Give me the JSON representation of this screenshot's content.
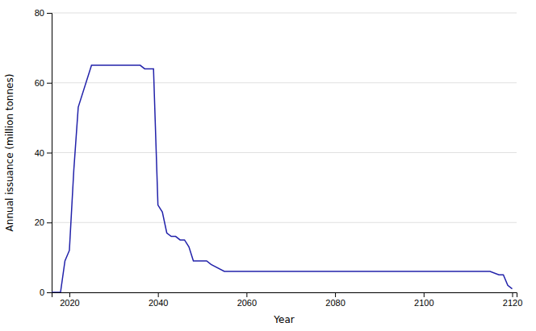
{
  "chart_data": {
    "type": "line",
    "x": [
      2016,
      2018,
      2019,
      2020,
      2021,
      2022,
      2025,
      2028,
      2030,
      2032,
      2033,
      2035,
      2036,
      2037,
      2038,
      2039,
      2040,
      2041,
      2042,
      2043,
      2044,
      2045,
      2046,
      2047,
      2048,
      2049,
      2050,
      2051,
      2052,
      2055,
      2058,
      2060,
      2065,
      2080,
      2110,
      2113,
      2115,
      2117,
      2118,
      2119,
      2120
    ],
    "values": [
      0,
      0,
      9,
      12,
      35,
      53,
      65,
      65,
      65,
      65,
      65,
      65,
      65,
      64,
      64,
      64,
      25,
      23,
      17,
      16,
      16,
      15,
      15,
      13,
      9,
      9,
      9,
      9,
      8,
      6,
      6,
      6,
      6,
      6,
      6,
      6,
      6,
      5,
      5,
      2,
      1
    ],
    "color": "#2222aa",
    "xlabel": "Year",
    "ylabel": "Annual issuance (million tonnes)",
    "xlim": [
      2016,
      2121
    ],
    "ylim": [
      0,
      80
    ],
    "xticks": [
      2020,
      2040,
      2060,
      2080,
      2100,
      2120
    ],
    "yticks": [
      0,
      20,
      40,
      60,
      80
    ],
    "grid": "y"
  }
}
